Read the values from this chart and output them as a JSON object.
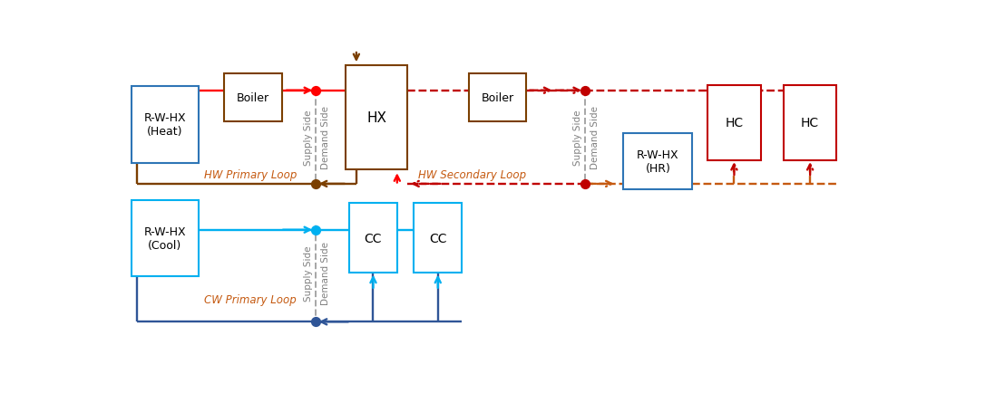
{
  "fig_width": 10.97,
  "fig_height": 4.35,
  "dpi": 100,
  "xlim": [
    0,
    10.97
  ],
  "ylim": [
    0,
    4.35
  ],
  "colors": {
    "cw_dark": "#2F5597",
    "cw_light": "#00B0F0",
    "hw_brown": "#7B3F00",
    "hw_red": "#FF0000",
    "hw_dashed_red": "#C00000",
    "hw_dashed_brown": "#C55A11",
    "sep": "#A6A6A6",
    "box_blue": "#2E75B6",
    "box_red": "#C00000",
    "box_brown": "#7B3F00",
    "label_color": "#C55A11"
  },
  "sep1_x": 2.72,
  "sep2_x": 6.55,
  "cw_top_y": 0.42,
  "cw_bot_y": 1.72,
  "hw_top_y": 2.62,
  "hw_bot_y": 3.7,
  "boxes": {
    "rwc": [
      0.1,
      1.05,
      0.95,
      1.1
    ],
    "cc1": [
      3.2,
      1.1,
      0.68,
      1.0
    ],
    "cc2": [
      4.12,
      1.1,
      0.68,
      1.0
    ],
    "rwh": [
      0.1,
      2.68,
      0.95,
      1.1
    ],
    "boil1": [
      1.42,
      3.28,
      0.82,
      0.68
    ],
    "hx": [
      3.15,
      2.58,
      0.88,
      1.5
    ],
    "boil2": [
      4.9,
      3.28,
      0.82,
      0.68
    ],
    "rwhr": [
      7.1,
      2.3,
      0.98,
      0.8
    ],
    "hc1": [
      8.3,
      2.72,
      0.75,
      1.08
    ],
    "hc2": [
      9.38,
      2.72,
      0.75,
      1.08
    ]
  },
  "labels": {
    "cw_primary": "CW Primary Loop",
    "hw_primary": "HW Primary Loop",
    "hw_secondary": "HW Secondary Loop",
    "supply": "Supply Side",
    "demand": "Demand Side"
  }
}
